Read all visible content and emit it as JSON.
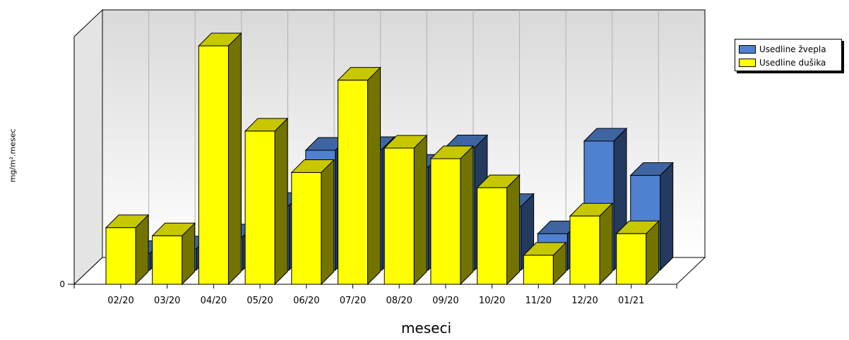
{
  "chart_data": {
    "type": "bar",
    "title": "",
    "xlabel": "meseci",
    "ylabel": "mg/m².mesec",
    "categories": [
      "02/20",
      "03/20",
      "04/20",
      "05/20",
      "06/20",
      "07/20",
      "08/20",
      "09/20",
      "10/20",
      "11/20",
      "12/20",
      "01/21"
    ],
    "yticks": [
      "0"
    ],
    "ylim": [
      0,
      700
    ],
    "grid": true,
    "legend_position": "top-right",
    "series": [
      {
        "name": "Usedline žvepla",
        "color": "#4f81d0",
        "values": [
          47,
          60,
          94,
          183,
          339,
          341,
          291,
          346,
          180,
          103,
          365,
          268
        ]
      },
      {
        "name": "Usedline dušika",
        "color": "#ffff00",
        "values": [
          160,
          137,
          674,
          433,
          316,
          577,
          385,
          355,
          273,
          82,
          193,
          143
        ]
      }
    ]
  }
}
